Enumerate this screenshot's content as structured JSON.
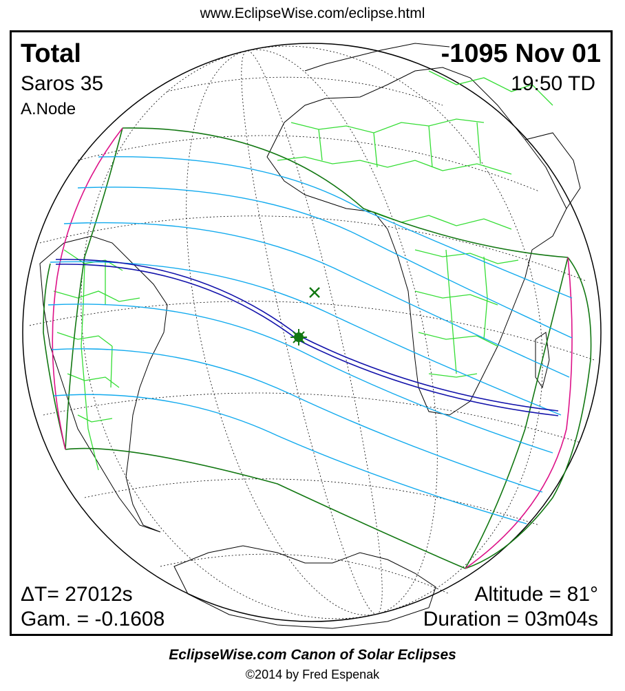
{
  "header": {
    "url": "www.EclipseWise.com/eclipse.html"
  },
  "eclipse": {
    "type": "Total",
    "date": "-1095 Nov 01",
    "saros": "Saros  35",
    "time": "19:50 TD",
    "node": "A.Node",
    "delta_t": "ΔT=  27012s",
    "gamma": "Gam. = -0.1608",
    "altitude": "Altitude = 81°",
    "duration": "Duration = 03m04s"
  },
  "footer": {
    "title": "EclipseWise.com Canon of Solar Eclipses",
    "copyright": "©2014 by Fred Espenak"
  },
  "colors": {
    "penumbra_limits": "#117711",
    "penumbra_lines": "#11aaee",
    "central_path": "#1111aa",
    "rise_set_curves": "#dd1188",
    "coastlines": "#000000",
    "borders": "#33dd33",
    "grid": "#000000"
  },
  "markers": {
    "greatest_eclipse": "sun-star-icon",
    "subsolar_point": "cross-icon"
  }
}
